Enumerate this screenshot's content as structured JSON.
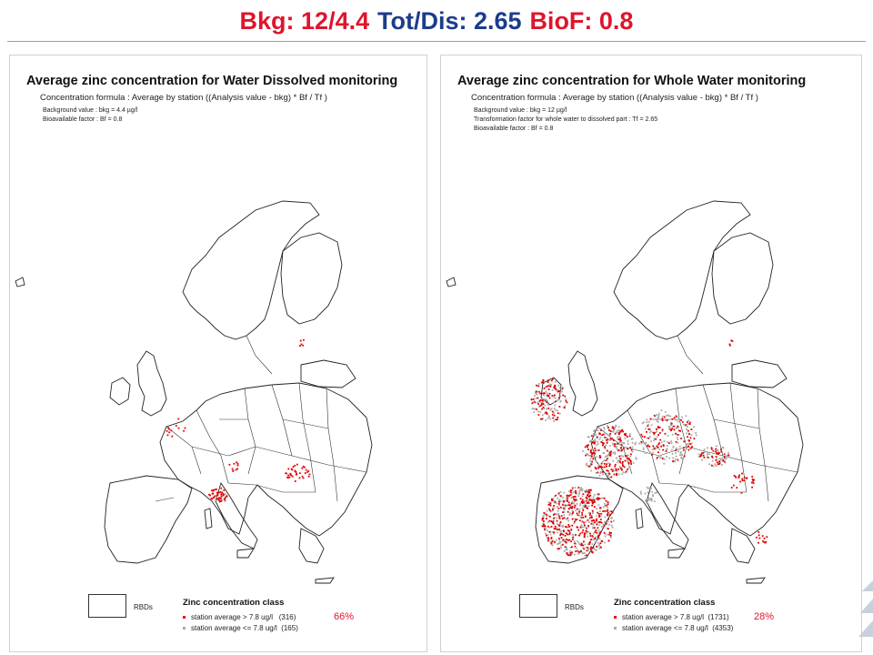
{
  "header": {
    "bkg": "Bkg: 12/4.4",
    "totdis": "Tot/Dis: 2.65",
    "biof": "BioF: 0.8"
  },
  "colors": {
    "red_title": "#e0142c",
    "blue_title": "#1c3c8c",
    "exceed_dot": "#e00000",
    "below_dot": "#aaaaaa"
  },
  "left_panel": {
    "title": "Average zinc concentration for Water Dissolved monitoring",
    "formula": "Concentration formula : Average by station  ((Analysis value - bkg) * Bf / Tf )",
    "notes": [
      "Background value : bkg = 4.4 µg/l",
      "Bioavailable factor : Bf = 0.8"
    ],
    "legend": {
      "rbd_label": "RBDs",
      "title": "Zinc concentration class",
      "rows": [
        {
          "label": "station average > 7.8 ug/l",
          "count": "(316)"
        },
        {
          "label": "station average <= 7.8 ug/l",
          "count": "(165)"
        }
      ],
      "percent": "66%"
    }
  },
  "right_panel": {
    "title": "Average zinc concentration for Whole Water monitoring",
    "formula": "Concentration formula : Average by station  ((Analysis value - bkg) * Bf / Tf )",
    "notes": [
      "Background value : bkg = 12 µg/l",
      "Transformation factor for whole water to dissolved part : Tf = 2.65",
      "Bioavailable factor : Bf = 0.8"
    ],
    "legend": {
      "rbd_label": "RBDs",
      "title": "Zinc concentration class",
      "rows": [
        {
          "label": "station average > 7.8 ug/l",
          "count": "(1731)"
        },
        {
          "label": "station average <= 7.8 ug/l",
          "count": "(4353)"
        }
      ],
      "percent": "28%"
    }
  }
}
